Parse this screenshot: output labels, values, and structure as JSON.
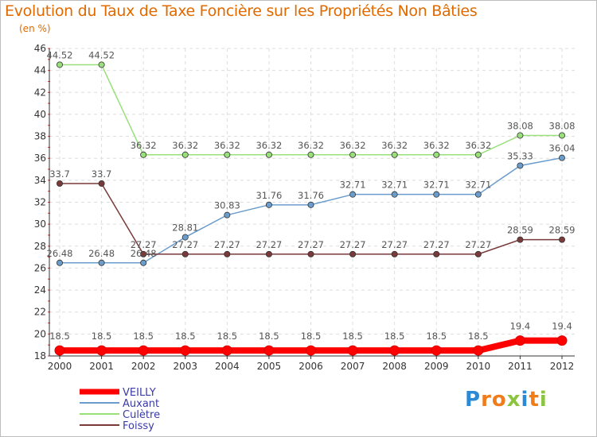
{
  "chart_data": {
    "type": "line",
    "title": "Evolution du Taux de Taxe Foncière sur les Propriétés Non Bâties",
    "subtitle": "(en %)",
    "xlabel": "",
    "ylabel": "",
    "categories": [
      "2000",
      "2001",
      "2002",
      "2003",
      "2004",
      "2005",
      "2006",
      "2007",
      "2008",
      "2009",
      "2010",
      "2011",
      "2012"
    ],
    "ylim": [
      18,
      46
    ],
    "yticks": [
      18,
      20,
      22,
      24,
      26,
      28,
      30,
      32,
      34,
      36,
      38,
      40,
      42,
      44,
      46
    ],
    "grid": true,
    "series": [
      {
        "name": "VEILLY",
        "color": "#ff0000",
        "values": [
          18.5,
          18.5,
          18.5,
          18.5,
          18.5,
          18.5,
          18.5,
          18.5,
          18.5,
          18.5,
          18.5,
          19.4,
          19.4
        ],
        "labels": [
          "18.5",
          "18.5",
          "18.5",
          "18.5",
          "18.5",
          "18.5",
          "18.5",
          "18.5",
          "18.5",
          "18.5",
          "18.5",
          "19.4",
          "19.4"
        ]
      },
      {
        "name": "Auxant",
        "color": "#6a9ccc",
        "values": [
          26.48,
          26.48,
          26.48,
          28.81,
          30.83,
          31.76,
          31.76,
          32.71,
          32.71,
          32.71,
          32.71,
          35.33,
          36.04
        ],
        "labels": [
          "26.48",
          "26.48",
          "26.48",
          "28.81",
          "30.83",
          "31.76",
          "31.76",
          "32.71",
          "32.71",
          "32.71",
          "32.71",
          "35.33",
          "36.04"
        ]
      },
      {
        "name": "Culètre",
        "color": "#99e07a",
        "values": [
          44.52,
          44.52,
          36.32,
          36.32,
          36.32,
          36.32,
          36.32,
          36.32,
          36.32,
          36.32,
          36.32,
          38.08,
          38.08
        ],
        "labels": [
          "44.52",
          "44.52",
          "36.32",
          "36.32",
          "36.32",
          "36.32",
          "36.32",
          "36.32",
          "36.32",
          "36.32",
          "36.32",
          "38.08",
          "38.08"
        ]
      },
      {
        "name": "Foissy",
        "color": "#7a3a3a",
        "values": [
          33.7,
          33.7,
          27.27,
          27.27,
          27.27,
          27.27,
          27.27,
          27.27,
          27.27,
          27.27,
          27.27,
          28.59,
          28.59
        ],
        "labels": [
          "33.7",
          "33.7",
          "27.27",
          "27.27",
          "27.27",
          "27.27",
          "27.27",
          "27.27",
          "27.27",
          "27.27",
          "27.27",
          "28.59",
          "28.59"
        ]
      }
    ],
    "legend": "bottom-left"
  },
  "logo": {
    "text": "Proxiti",
    "colors": [
      "#2b8ad6",
      "#f07c1a",
      "#f07c1a",
      "#8bc53f",
      "#2b8ad6",
      "#f07c1a",
      "#8bc53f"
    ]
  }
}
